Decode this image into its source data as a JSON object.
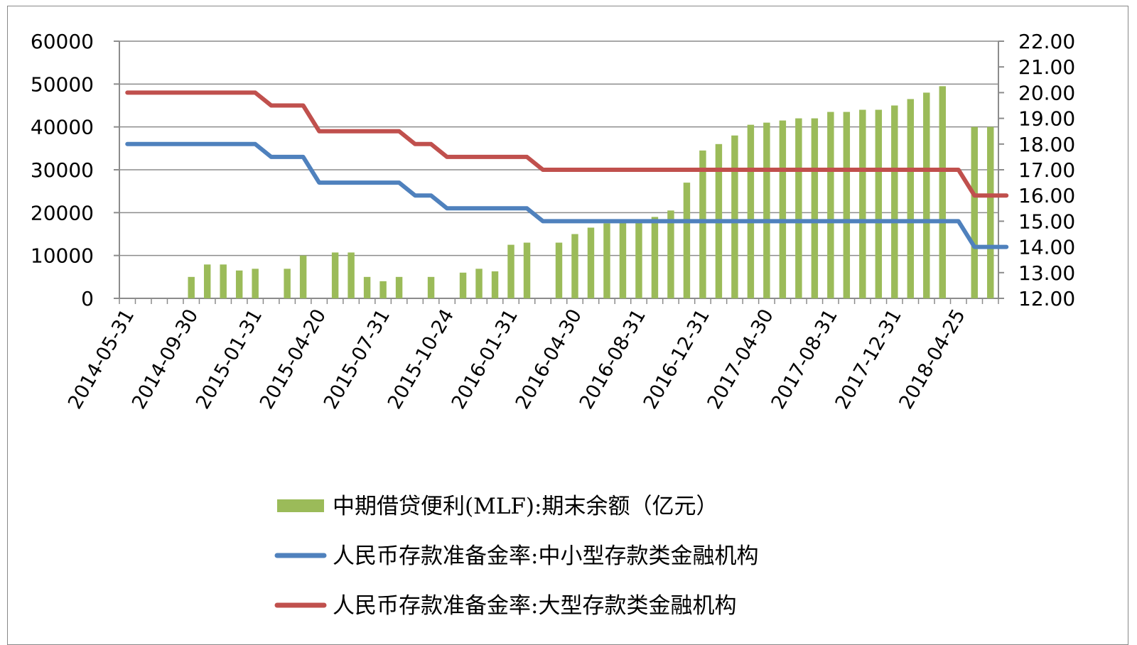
{
  "chart_data": {
    "type": "bar+line",
    "x_tick_labels": [
      "2014-05-31",
      "2014-09-30",
      "2015-01-31",
      "2015-04-20",
      "2015-07-31",
      "2015-10-24",
      "2016-01-31",
      "2016-04-30",
      "2016-08-31",
      "2016-12-31",
      "2017-04-30",
      "2017-08-31",
      "2017-12-31",
      "2018-04-25"
    ],
    "left_axis": {
      "ylim": [
        0,
        60000
      ],
      "ticks": [
        "0",
        "10000",
        "20000",
        "30000",
        "40000",
        "50000",
        "60000"
      ]
    },
    "right_axis": {
      "ylim": [
        12,
        22
      ],
      "ticks": [
        "12.00",
        "13.00",
        "14.00",
        "15.00",
        "16.00",
        "17.00",
        "18.00",
        "19.00",
        "20.00",
        "21.00",
        "22.00"
      ]
    },
    "grid": "horizontal",
    "legend_placement": "bottom",
    "series": [
      {
        "name": "中期借贷便利(MLF):期末余额（亿元）",
        "type": "bar",
        "axis": "left",
        "color": "#9BBB59",
        "values": [
          0,
          0,
          0,
          0,
          5000,
          7900,
          7900,
          6500,
          6900,
          0,
          6900,
          10000,
          0,
          10700,
          10700,
          5000,
          4000,
          5000,
          0,
          5000,
          0,
          6000,
          6900,
          6300,
          12500,
          13000,
          0,
          13000,
          15000,
          16500,
          17500,
          18000,
          18000,
          19000,
          20500,
          27000,
          34500,
          36000,
          38000,
          40500,
          41000,
          41500,
          42000,
          42000,
          43500,
          43500,
          44000,
          44000,
          45000,
          46500,
          48000,
          49500,
          0,
          40000,
          40000
        ]
      },
      {
        "name": "人民币存款准备金率:中小型存款类金融机构",
        "type": "line",
        "axis": "right",
        "color": "#4F81BD",
        "values": [
          18,
          18,
          18,
          18,
          18,
          18,
          18,
          18,
          18,
          17.5,
          17.5,
          17.5,
          16.5,
          16.5,
          16.5,
          16.5,
          16.5,
          16.5,
          16,
          16,
          15.5,
          15.5,
          15.5,
          15.5,
          15.5,
          15.5,
          15,
          15,
          15,
          15,
          15,
          15,
          15,
          15,
          15,
          15,
          15,
          15,
          15,
          15,
          15,
          15,
          15,
          15,
          15,
          15,
          15,
          15,
          15,
          15,
          15,
          15,
          15,
          14,
          14,
          14
        ]
      },
      {
        "name": "人民币存款准备金率:大型存款类金融机构",
        "type": "line",
        "axis": "right",
        "color": "#C0504D",
        "values": [
          20,
          20,
          20,
          20,
          20,
          20,
          20,
          20,
          20,
          19.5,
          19.5,
          19.5,
          18.5,
          18.5,
          18.5,
          18.5,
          18.5,
          18.5,
          18,
          18,
          17.5,
          17.5,
          17.5,
          17.5,
          17.5,
          17.5,
          17,
          17,
          17,
          17,
          17,
          17,
          17,
          17,
          17,
          17,
          17,
          17,
          17,
          17,
          17,
          17,
          17,
          17,
          17,
          17,
          17,
          17,
          17,
          17,
          17,
          17,
          17,
          16,
          16,
          16
        ]
      }
    ]
  }
}
